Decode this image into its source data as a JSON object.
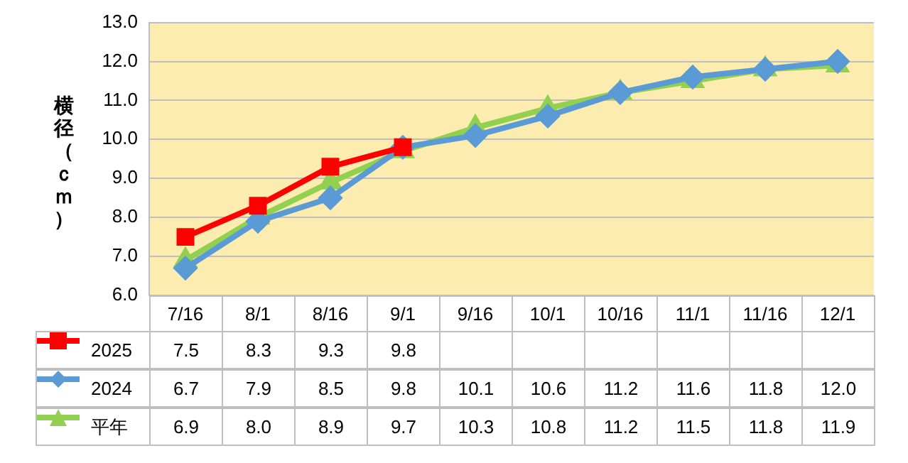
{
  "chart_data": {
    "type": "line",
    "ylabel": "横径（ｃｍ）",
    "categories": [
      "7/16",
      "8/1",
      "8/16",
      "9/1",
      "9/16",
      "10/1",
      "10/16",
      "11/1",
      "11/16",
      "12/1"
    ],
    "series": [
      {
        "name": "2025",
        "color": "#ff0000",
        "marker": "square",
        "values": [
          7.5,
          8.3,
          9.3,
          9.8,
          null,
          null,
          null,
          null,
          null,
          null
        ],
        "value_labels": [
          "7.5",
          "8.3",
          "9.3",
          "9.8",
          null,
          null,
          null,
          null,
          null,
          null
        ]
      },
      {
        "name": "2024",
        "color": "#5b9bd5",
        "marker": "diamond",
        "values": [
          6.7,
          7.9,
          8.5,
          9.8,
          10.1,
          10.6,
          11.2,
          11.6,
          11.8,
          12.0
        ],
        "value_labels": [
          "6.7",
          "7.9",
          "8.5",
          "9.8",
          "10.1",
          "10.6",
          "11.2",
          "11.6",
          "11.8",
          "12.0"
        ]
      },
      {
        "name": "平年",
        "color": "#92d050",
        "marker": "triangle",
        "values": [
          6.9,
          8.0,
          8.9,
          9.7,
          10.3,
          10.8,
          11.2,
          11.5,
          11.8,
          11.9
        ],
        "value_labels": [
          "6.9",
          "8.0",
          "8.9",
          "9.7",
          "10.3",
          "10.8",
          "11.2",
          "11.5",
          "11.8",
          "11.9"
        ]
      }
    ],
    "ylim": [
      6,
      13
    ],
    "yticks": [
      {
        "value": 6,
        "label": "6.0"
      },
      {
        "value": 7,
        "label": "7.0"
      },
      {
        "value": 8,
        "label": "8.0"
      },
      {
        "value": 9,
        "label": "9.0"
      },
      {
        "value": 10,
        "label": "10.0"
      },
      {
        "value": 11,
        "label": "11.0"
      },
      {
        "value": 12,
        "label": "12.0"
      },
      {
        "value": 13,
        "label": "13.0"
      }
    ],
    "grid": "y",
    "legend": "bottom left",
    "line_style": "solid"
  }
}
